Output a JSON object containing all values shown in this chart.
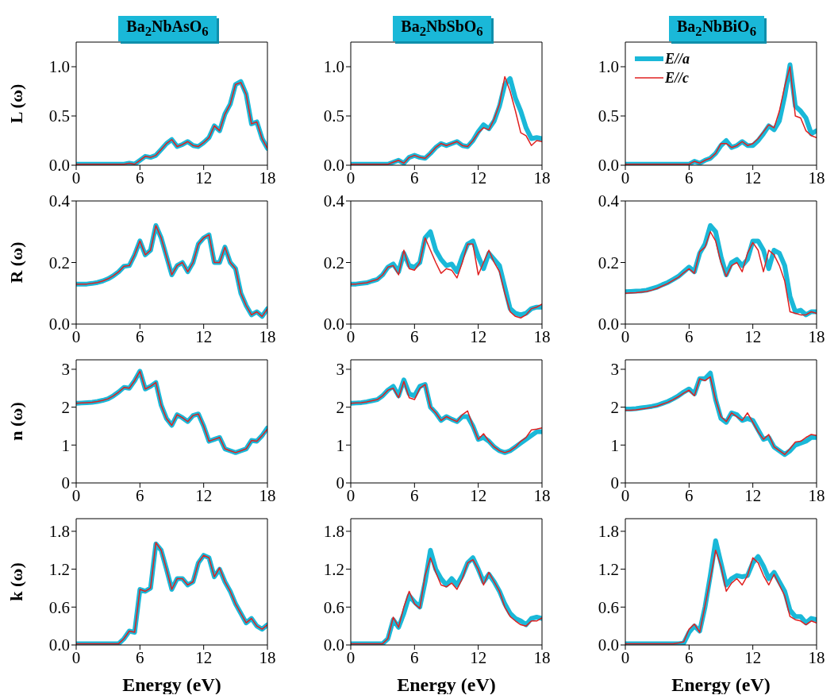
{
  "chart_data": [
    {
      "type": "line",
      "title": "Ba$_{2}$NbAsO$_{6}$",
      "ylabel": "L (ω)",
      "xlim": [
        0,
        18
      ],
      "xticks": [
        0,
        6,
        12,
        18
      ],
      "ylim": [
        0,
        1.25
      ],
      "yticks": [
        {
          "value": 0,
          "label": "0.0"
        },
        {
          "value": 0.5,
          "label": "0.5"
        },
        {
          "value": 1,
          "label": "1.0"
        }
      ],
      "x": [
        0,
        0.5,
        1,
        1.5,
        2,
        2.5,
        3,
        3.5,
        4,
        4.5,
        5,
        5.5,
        6,
        6.5,
        7,
        7.5,
        8,
        8.5,
        9,
        9.5,
        10,
        10.5,
        11,
        11.5,
        12,
        12.5,
        13,
        13.5,
        14,
        14.5,
        15,
        15.5,
        16,
        16.5,
        17,
        17.5,
        18
      ],
      "series": [
        {
          "color": "#1ab8d8",
          "values": [
            0.01,
            0.01,
            0.01,
            0.01,
            0.01,
            0.01,
            0.01,
            0.01,
            0.01,
            0.01,
            0.02,
            0.01,
            0.05,
            0.09,
            0.08,
            0.1,
            0.16,
            0.22,
            0.26,
            0.19,
            0.21,
            0.24,
            0.2,
            0.19,
            0.23,
            0.28,
            0.4,
            0.35,
            0.52,
            0.62,
            0.82,
            0.85,
            0.72,
            0.42,
            0.44,
            0.27,
            0.17
          ]
        },
        {
          "color": "#e02020",
          "values": [
            0.01,
            0.01,
            0.01,
            0.01,
            0.01,
            0.01,
            0.01,
            0.01,
            0.01,
            0.01,
            0.02,
            0.01,
            0.05,
            0.09,
            0.08,
            0.1,
            0.16,
            0.22,
            0.26,
            0.19,
            0.21,
            0.24,
            0.2,
            0.19,
            0.23,
            0.28,
            0.4,
            0.35,
            0.52,
            0.62,
            0.82,
            0.84,
            0.72,
            0.42,
            0.44,
            0.27,
            0.17
          ]
        }
      ]
    },
    {
      "type": "line",
      "title": "Ba$_{2}$NbSbO$_{6}$",
      "xlim": [
        0,
        18
      ],
      "xticks": [
        0,
        6,
        12,
        18
      ],
      "ylim": [
        0,
        1.25
      ],
      "yticks": [
        {
          "value": 0,
          "label": "0.0"
        },
        {
          "value": 0.5,
          "label": "0.5"
        },
        {
          "value": 1,
          "label": "1.0"
        }
      ],
      "x": [
        0,
        0.5,
        1,
        1.5,
        2,
        2.5,
        3,
        3.5,
        4,
        4.5,
        5,
        5.5,
        6,
        6.5,
        7,
        7.5,
        8,
        8.5,
        9,
        9.5,
        10,
        10.5,
        11,
        11.5,
        12,
        12.5,
        13,
        13.5,
        14,
        14.5,
        15,
        15.5,
        16,
        16.5,
        17,
        17.5,
        18
      ],
      "series": [
        {
          "color": "#1ab8d8",
          "values": [
            0.01,
            0.01,
            0.01,
            0.01,
            0.01,
            0.01,
            0.01,
            0.01,
            0.03,
            0.05,
            0.02,
            0.08,
            0.1,
            0.08,
            0.07,
            0.12,
            0.18,
            0.22,
            0.2,
            0.22,
            0.24,
            0.2,
            0.19,
            0.25,
            0.34,
            0.41,
            0.37,
            0.45,
            0.6,
            0.82,
            0.88,
            0.68,
            0.55,
            0.38,
            0.27,
            0.28,
            0.27
          ]
        },
        {
          "color": "#e02020",
          "values": [
            0.01,
            0.01,
            0.01,
            0.01,
            0.01,
            0.01,
            0.01,
            0.01,
            0.03,
            0.05,
            0.02,
            0.08,
            0.1,
            0.08,
            0.07,
            0.12,
            0.18,
            0.22,
            0.2,
            0.22,
            0.24,
            0.2,
            0.19,
            0.25,
            0.33,
            0.38,
            0.36,
            0.47,
            0.62,
            0.9,
            0.75,
            0.55,
            0.33,
            0.3,
            0.2,
            0.25,
            0.24
          ]
        }
      ]
    },
    {
      "type": "line",
      "title": "Ba$_{2}$NbBiO$_{6}$",
      "legend": "top left",
      "xlim": [
        0,
        18
      ],
      "xticks": [
        0,
        6,
        12,
        18
      ],
      "ylim": [
        0,
        1.25
      ],
      "yticks": [
        {
          "value": 0,
          "label": "0.0"
        },
        {
          "value": 0.5,
          "label": "0.5"
        },
        {
          "value": 1,
          "label": "1.0"
        }
      ],
      "x": [
        0,
        0.5,
        1,
        1.5,
        2,
        2.5,
        3,
        3.5,
        4,
        4.5,
        5,
        5.5,
        6,
        6.5,
        7,
        7.5,
        8,
        8.5,
        9,
        9.5,
        10,
        10.5,
        11,
        11.5,
        12,
        12.5,
        13,
        13.5,
        14,
        14.5,
        15,
        15.5,
        16,
        16.5,
        17,
        17.5,
        18
      ],
      "series": [
        {
          "name": "E//a",
          "color": "#1ab8d8",
          "values": [
            0.01,
            0.01,
            0.01,
            0.01,
            0.01,
            0.01,
            0.01,
            0.01,
            0.01,
            0.01,
            0.01,
            0.01,
            0.01,
            0.04,
            0.02,
            0.05,
            0.07,
            0.12,
            0.2,
            0.25,
            0.18,
            0.2,
            0.24,
            0.2,
            0.2,
            0.25,
            0.32,
            0.4,
            0.36,
            0.45,
            0.7,
            1.02,
            0.6,
            0.55,
            0.48,
            0.32,
            0.35
          ]
        },
        {
          "name": "E//c",
          "color": "#e02020",
          "values": [
            0.01,
            0.01,
            0.01,
            0.01,
            0.01,
            0.01,
            0.01,
            0.01,
            0.01,
            0.01,
            0.01,
            0.01,
            0.01,
            0.04,
            0.02,
            0.05,
            0.07,
            0.12,
            0.22,
            0.22,
            0.18,
            0.2,
            0.24,
            0.2,
            0.22,
            0.27,
            0.34,
            0.41,
            0.38,
            0.55,
            0.8,
            1,
            0.5,
            0.48,
            0.35,
            0.3,
            0.28
          ]
        }
      ]
    },
    {
      "type": "line",
      "ylabel": "R (ω)",
      "xlim": [
        0,
        18
      ],
      "xticks": [
        0,
        6,
        12,
        18
      ],
      "ylim": [
        0,
        0.4
      ],
      "yticks": [
        {
          "value": 0,
          "label": "0.0"
        },
        {
          "value": 0.2,
          "label": "0.2"
        },
        {
          "value": 0.4,
          "label": "0.4"
        }
      ],
      "x": [
        0,
        0.5,
        1,
        1.5,
        2,
        2.5,
        3,
        3.5,
        4,
        4.5,
        5,
        5.5,
        6,
        6.5,
        7,
        7.5,
        8,
        8.5,
        9,
        9.5,
        10,
        10.5,
        11,
        11.5,
        12,
        12.5,
        13,
        13.5,
        14,
        14.5,
        15,
        15.5,
        16,
        16.5,
        17,
        17.5,
        18
      ],
      "series": [
        {
          "color": "#1ab8d8",
          "values": [
            0.13,
            0.13,
            0.13,
            0.132,
            0.135,
            0.14,
            0.147,
            0.157,
            0.17,
            0.188,
            0.19,
            0.225,
            0.27,
            0.225,
            0.24,
            0.32,
            0.28,
            0.22,
            0.16,
            0.19,
            0.2,
            0.17,
            0.2,
            0.26,
            0.28,
            0.29,
            0.2,
            0.2,
            0.25,
            0.2,
            0.18,
            0.1,
            0.06,
            0.03,
            0.04,
            0.025,
            0.05
          ]
        },
        {
          "color": "#e02020",
          "values": [
            0.13,
            0.13,
            0.13,
            0.132,
            0.135,
            0.14,
            0.147,
            0.157,
            0.17,
            0.188,
            0.19,
            0.225,
            0.27,
            0.225,
            0.24,
            0.32,
            0.28,
            0.22,
            0.16,
            0.19,
            0.2,
            0.17,
            0.2,
            0.26,
            0.28,
            0.29,
            0.2,
            0.2,
            0.25,
            0.2,
            0.18,
            0.1,
            0.06,
            0.03,
            0.04,
            0.025,
            0.05
          ]
        }
      ]
    },
    {
      "type": "line",
      "xlim": [
        0,
        18
      ],
      "xticks": [
        0,
        6,
        12,
        18
      ],
      "ylim": [
        0,
        0.4
      ],
      "yticks": [
        {
          "value": 0,
          "label": "0.0"
        },
        {
          "value": 0.2,
          "label": "0.2"
        },
        {
          "value": 0.4,
          "label": "0.4"
        }
      ],
      "x": [
        0,
        0.5,
        1,
        1.5,
        2,
        2.5,
        3,
        3.5,
        4,
        4.5,
        5,
        5.5,
        6,
        6.5,
        7,
        7.5,
        8,
        8.5,
        9,
        9.5,
        10,
        10.5,
        11,
        11.5,
        12,
        12.5,
        13,
        13.5,
        14,
        14.5,
        15,
        15.5,
        16,
        16.5,
        17,
        17.5,
        18
      ],
      "series": [
        {
          "color": "#1ab8d8",
          "values": [
            0.13,
            0.13,
            0.132,
            0.134,
            0.14,
            0.145,
            0.16,
            0.185,
            0.195,
            0.17,
            0.23,
            0.19,
            0.185,
            0.2,
            0.28,
            0.3,
            0.24,
            0.21,
            0.19,
            0.195,
            0.17,
            0.22,
            0.26,
            0.27,
            0.22,
            0.18,
            0.23,
            0.21,
            0.19,
            0.12,
            0.05,
            0.035,
            0.03,
            0.035,
            0.05,
            0.055,
            0.055
          ]
        },
        {
          "color": "#e02020",
          "values": [
            0.13,
            0.13,
            0.132,
            0.134,
            0.14,
            0.145,
            0.16,
            0.185,
            0.19,
            0.16,
            0.24,
            0.18,
            0.175,
            0.2,
            0.28,
            0.24,
            0.2,
            0.165,
            0.18,
            0.175,
            0.15,
            0.2,
            0.26,
            0.26,
            0.16,
            0.2,
            0.24,
            0.2,
            0.17,
            0.1,
            0.04,
            0.025,
            0.02,
            0.03,
            0.05,
            0.055,
            0.065
          ]
        }
      ]
    },
    {
      "type": "line",
      "xlim": [
        0,
        18
      ],
      "xticks": [
        0,
        6,
        12,
        18
      ],
      "ylim": [
        0,
        0.4
      ],
      "yticks": [
        {
          "value": 0,
          "label": "0.0"
        },
        {
          "value": 0.2,
          "label": "0.2"
        },
        {
          "value": 0.4,
          "label": "0.4"
        }
      ],
      "x": [
        0,
        0.5,
        1,
        1.5,
        2,
        2.5,
        3,
        3.5,
        4,
        4.5,
        5,
        5.5,
        6,
        6.5,
        7,
        7.5,
        8,
        8.5,
        9,
        9.5,
        10,
        10.5,
        11,
        11.5,
        12,
        12.5,
        13,
        13.5,
        14,
        14.5,
        15,
        15.5,
        16,
        16.5,
        17,
        17.5,
        18
      ],
      "series": [
        {
          "color": "#1ab8d8",
          "values": [
            0.105,
            0.106,
            0.107,
            0.108,
            0.11,
            0.115,
            0.12,
            0.128,
            0.135,
            0.145,
            0.155,
            0.17,
            0.185,
            0.17,
            0.23,
            0.26,
            0.32,
            0.3,
            0.22,
            0.16,
            0.2,
            0.21,
            0.19,
            0.21,
            0.27,
            0.27,
            0.24,
            0.18,
            0.24,
            0.23,
            0.19,
            0.09,
            0.04,
            0.045,
            0.03,
            0.04,
            0.04
          ]
        },
        {
          "color": "#e02020",
          "values": [
            0.1,
            0.101,
            0.102,
            0.104,
            0.106,
            0.11,
            0.116,
            0.124,
            0.132,
            0.142,
            0.152,
            0.167,
            0.18,
            0.165,
            0.235,
            0.25,
            0.3,
            0.27,
            0.2,
            0.155,
            0.19,
            0.2,
            0.17,
            0.23,
            0.265,
            0.24,
            0.17,
            0.24,
            0.225,
            0.19,
            0.14,
            0.04,
            0.035,
            0.03,
            0.03,
            0.04,
            0.035
          ]
        }
      ]
    },
    {
      "type": "line",
      "ylabel": "n (ω)",
      "xlim": [
        0,
        18
      ],
      "xticks": [
        0,
        6,
        12,
        18
      ],
      "ylim": [
        0,
        3.25
      ],
      "yticks": [
        0,
        1,
        2,
        3
      ],
      "x": [
        0,
        0.5,
        1,
        1.5,
        2,
        2.5,
        3,
        3.5,
        4,
        4.5,
        5,
        5.5,
        6,
        6.5,
        7,
        7.5,
        8,
        8.5,
        9,
        9.5,
        10,
        10.5,
        11,
        11.5,
        12,
        12.5,
        13,
        13.5,
        14,
        14.5,
        15,
        15.5,
        16,
        16.5,
        17,
        17.5,
        18
      ],
      "series": [
        {
          "color": "#1ab8d8",
          "values": [
            2.1,
            2.11,
            2.12,
            2.13,
            2.15,
            2.18,
            2.22,
            2.3,
            2.4,
            2.52,
            2.5,
            2.7,
            2.95,
            2.48,
            2.55,
            2.65,
            2.05,
            1.7,
            1.52,
            1.8,
            1.72,
            1.62,
            1.78,
            1.82,
            1.5,
            1.1,
            1.15,
            1.2,
            0.9,
            0.85,
            0.8,
            0.85,
            0.9,
            1.12,
            1.1,
            1.25,
            1.45
          ]
        },
        {
          "color": "#e02020",
          "values": [
            2.1,
            2.11,
            2.12,
            2.13,
            2.15,
            2.18,
            2.22,
            2.3,
            2.4,
            2.52,
            2.5,
            2.7,
            2.95,
            2.48,
            2.55,
            2.65,
            2.05,
            1.7,
            1.52,
            1.8,
            1.72,
            1.62,
            1.78,
            1.82,
            1.5,
            1.1,
            1.15,
            1.2,
            0.9,
            0.85,
            0.8,
            0.85,
            0.9,
            1.12,
            1.1,
            1.25,
            1.42
          ]
        }
      ]
    },
    {
      "type": "line",
      "xlim": [
        0,
        18
      ],
      "xticks": [
        0,
        6,
        12,
        18
      ],
      "ylim": [
        0,
        3.25
      ],
      "yticks": [
        0,
        1,
        2,
        3
      ],
      "x": [
        0,
        0.5,
        1,
        1.5,
        2,
        2.5,
        3,
        3.5,
        4,
        4.5,
        5,
        5.5,
        6,
        6.5,
        7,
        7.5,
        8,
        8.5,
        9,
        9.5,
        10,
        10.5,
        11,
        11.5,
        12,
        12.5,
        13,
        13.5,
        14,
        14.5,
        15,
        15.5,
        16,
        16.5,
        17,
        17.5,
        18
      ],
      "series": [
        {
          "color": "#1ab8d8",
          "values": [
            2.1,
            2.11,
            2.12,
            2.14,
            2.17,
            2.2,
            2.3,
            2.45,
            2.55,
            2.3,
            2.72,
            2.35,
            2.3,
            2.55,
            2.6,
            2,
            1.85,
            1.65,
            1.75,
            1.68,
            1.62,
            1.75,
            1.75,
            1.5,
            1.15,
            1.2,
            1.1,
            0.95,
            0.85,
            0.8,
            0.85,
            0.95,
            1.05,
            1.15,
            1.25,
            1.35,
            1.35
          ]
        },
        {
          "color": "#e02020",
          "values": [
            2.1,
            2.11,
            2.12,
            2.14,
            2.17,
            2.2,
            2.3,
            2.45,
            2.5,
            2.25,
            2.68,
            2.25,
            2.2,
            2.5,
            2.6,
            2,
            1.85,
            1.65,
            1.75,
            1.68,
            1.62,
            1.8,
            1.9,
            1.5,
            1.15,
            1.3,
            1.1,
            0.95,
            0.85,
            0.8,
            0.85,
            0.95,
            1.1,
            1.2,
            1.4,
            1.42,
            1.45
          ]
        }
      ]
    },
    {
      "type": "line",
      "xlim": [
        0,
        18
      ],
      "xticks": [
        0,
        6,
        12,
        18
      ],
      "ylim": [
        0,
        3.25
      ],
      "yticks": [
        0,
        1,
        2,
        3
      ],
      "x": [
        0,
        0.5,
        1,
        1.5,
        2,
        2.5,
        3,
        3.5,
        4,
        4.5,
        5,
        5.5,
        6,
        6.5,
        7,
        7.5,
        8,
        8.5,
        9,
        9.5,
        10,
        10.5,
        11,
        11.5,
        12,
        12.5,
        13,
        13.5,
        14,
        14.5,
        15,
        15.5,
        16,
        16.5,
        17,
        17.5,
        18
      ],
      "series": [
        {
          "color": "#1ab8d8",
          "values": [
            1.95,
            1.95,
            1.96,
            1.98,
            2,
            2.02,
            2.05,
            2.1,
            2.15,
            2.22,
            2.3,
            2.4,
            2.48,
            2.35,
            2.75,
            2.75,
            2.9,
            2.2,
            1.7,
            1.6,
            1.85,
            1.8,
            1.65,
            1.7,
            1.65,
            1.4,
            1.15,
            1.2,
            0.95,
            0.85,
            0.75,
            0.85,
            1,
            1.05,
            1.1,
            1.2,
            1.2
          ]
        },
        {
          "color": "#e02020",
          "values": [
            1.92,
            1.92,
            1.93,
            1.95,
            1.97,
            2,
            2.03,
            2.08,
            2.13,
            2.2,
            2.28,
            2.37,
            2.45,
            2.3,
            2.75,
            2.7,
            2.8,
            2.2,
            1.75,
            1.62,
            1.85,
            1.75,
            1.65,
            1.85,
            1.6,
            1.35,
            1.15,
            1.28,
            0.95,
            0.85,
            0.75,
            0.9,
            1.08,
            1.1,
            1.2,
            1.28,
            1.25
          ]
        }
      ]
    },
    {
      "type": "line",
      "ylabel": "k (ω)",
      "xlabel": "Energy (eV)",
      "xlim": [
        0,
        18
      ],
      "xticks": [
        0,
        6,
        12,
        18
      ],
      "ylim": [
        0,
        2
      ],
      "yticks": [
        {
          "value": 0,
          "label": "0.0"
        },
        {
          "value": 0.6,
          "label": "0.6"
        },
        {
          "value": 1.2,
          "label": "1.2"
        },
        {
          "value": 1.8,
          "label": "1.8"
        }
      ],
      "x": [
        0,
        0.5,
        1,
        1.5,
        2,
        2.5,
        3,
        3.5,
        4,
        4.5,
        5,
        5.5,
        6,
        6.5,
        7,
        7.5,
        8,
        8.5,
        9,
        9.5,
        10,
        10.5,
        11,
        11.5,
        12,
        12.5,
        13,
        13.5,
        14,
        14.5,
        15,
        15.5,
        16,
        16.5,
        17,
        17.5,
        18
      ],
      "series": [
        {
          "color": "#1ab8d8",
          "values": [
            0.02,
            0.02,
            0.02,
            0.02,
            0.02,
            0.02,
            0.02,
            0.02,
            0.02,
            0.1,
            0.22,
            0.2,
            0.88,
            0.85,
            0.9,
            1.6,
            1.5,
            1.2,
            0.88,
            1.05,
            1.05,
            0.95,
            1,
            1.3,
            1.42,
            1.38,
            1.08,
            1.2,
            1,
            0.85,
            0.65,
            0.5,
            0.35,
            0.42,
            0.3,
            0.25,
            0.32
          ]
        },
        {
          "color": "#e02020",
          "values": [
            0.02,
            0.02,
            0.02,
            0.02,
            0.02,
            0.02,
            0.02,
            0.02,
            0.02,
            0.1,
            0.22,
            0.2,
            0.88,
            0.85,
            0.9,
            1.62,
            1.5,
            1.2,
            0.88,
            1.05,
            1.05,
            0.95,
            1,
            1.3,
            1.42,
            1.38,
            1.08,
            1.22,
            1,
            0.85,
            0.65,
            0.5,
            0.35,
            0.42,
            0.3,
            0.25,
            0.32
          ]
        }
      ]
    },
    {
      "type": "line",
      "xlabel": "Energy (eV)",
      "xlim": [
        0,
        18
      ],
      "xticks": [
        0,
        6,
        12,
        18
      ],
      "ylim": [
        0,
        2
      ],
      "yticks": [
        {
          "value": 0,
          "label": "0.0"
        },
        {
          "value": 0.6,
          "label": "0.6"
        },
        {
          "value": 1.2,
          "label": "1.2"
        },
        {
          "value": 1.8,
          "label": "1.8"
        }
      ],
      "x": [
        0,
        0.5,
        1,
        1.5,
        2,
        2.5,
        3,
        3.5,
        4,
        4.5,
        5,
        5.5,
        6,
        6.5,
        7,
        7.5,
        8,
        8.5,
        9,
        9.5,
        10,
        10.5,
        11,
        11.5,
        12,
        12.5,
        13,
        13.5,
        14,
        14.5,
        15,
        15.5,
        16,
        16.5,
        17,
        17.5,
        18
      ],
      "series": [
        {
          "color": "#1ab8d8",
          "values": [
            0.02,
            0.02,
            0.02,
            0.02,
            0.02,
            0.02,
            0.02,
            0.1,
            0.4,
            0.28,
            0.5,
            0.78,
            0.68,
            0.6,
            1,
            1.5,
            1.2,
            1.05,
            0.95,
            1.05,
            0.95,
            1.1,
            1.3,
            1.38,
            1.2,
            1,
            1.12,
            1,
            0.85,
            0.65,
            0.5,
            0.42,
            0.38,
            0.32,
            0.42,
            0.44,
            0.42
          ]
        },
        {
          "color": "#e02020",
          "values": [
            0.02,
            0.02,
            0.02,
            0.02,
            0.02,
            0.02,
            0.02,
            0.1,
            0.44,
            0.28,
            0.6,
            0.85,
            0.65,
            0.58,
            1.1,
            1.38,
            1.15,
            0.95,
            0.92,
            0.98,
            0.88,
            1.05,
            1.3,
            1.35,
            1.2,
            0.95,
            1.15,
            1,
            0.85,
            0.6,
            0.45,
            0.38,
            0.32,
            0.3,
            0.38,
            0.38,
            0.43
          ]
        }
      ]
    },
    {
      "type": "line",
      "xlabel": "Energy (eV)",
      "xlim": [
        0,
        18
      ],
      "xticks": [
        0,
        6,
        12,
        18
      ],
      "ylim": [
        0,
        2
      ],
      "yticks": [
        {
          "value": 0,
          "label": "0.0"
        },
        {
          "value": 0.6,
          "label": "0.6"
        },
        {
          "value": 1.2,
          "label": "1.2"
        },
        {
          "value": 1.8,
          "label": "1.8"
        }
      ],
      "x": [
        0,
        0.5,
        1,
        1.5,
        2,
        2.5,
        3,
        3.5,
        4,
        4.5,
        5,
        5.5,
        6,
        6.5,
        7,
        7.5,
        8,
        8.5,
        9,
        9.5,
        10,
        10.5,
        11,
        11.5,
        12,
        12.5,
        13,
        13.5,
        14,
        14.5,
        15,
        15.5,
        16,
        16.5,
        17,
        17.5,
        18
      ],
      "series": [
        {
          "color": "#1ab8d8",
          "values": [
            0.02,
            0.02,
            0.02,
            0.02,
            0.02,
            0.02,
            0.02,
            0.02,
            0.02,
            0.02,
            0.02,
            0.03,
            0.2,
            0.3,
            0.22,
            0.6,
            1.1,
            1.65,
            1.3,
            0.95,
            1.05,
            1.1,
            1.08,
            1.1,
            1.3,
            1.4,
            1.25,
            1.05,
            1.15,
            1,
            0.85,
            0.55,
            0.45,
            0.45,
            0.35,
            0.42,
            0.4
          ]
        },
        {
          "color": "#e02020",
          "values": [
            0.02,
            0.02,
            0.02,
            0.02,
            0.02,
            0.02,
            0.02,
            0.02,
            0.02,
            0.02,
            0.03,
            0.05,
            0.25,
            0.33,
            0.2,
            0.62,
            1.05,
            1.5,
            1.25,
            0.85,
            0.98,
            1.05,
            0.95,
            1.1,
            1.38,
            1.3,
            1.1,
            0.95,
            1.12,
            0.95,
            0.78,
            0.45,
            0.4,
            0.38,
            0.32,
            0.38,
            0.35
          ]
        }
      ]
    }
  ]
}
